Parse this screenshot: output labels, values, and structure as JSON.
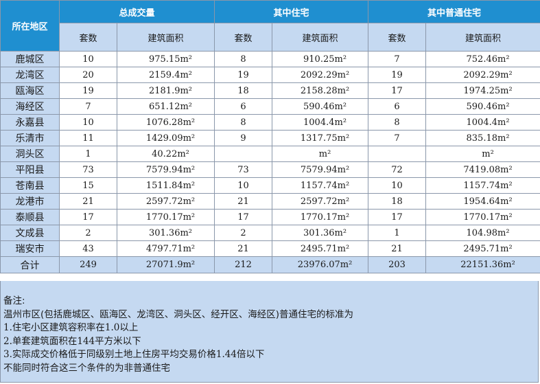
{
  "headers": {
    "region": "所在地区",
    "total": "总成交量",
    "residential": "其中住宅",
    "ordinary": "其中普通住宅",
    "sets": "套数",
    "area": "建筑面积"
  },
  "unit": "m²",
  "rows": [
    {
      "region": "鹿城区",
      "t_sets": "10",
      "t_area": "975.15",
      "r_sets": "8",
      "r_area": "910.25",
      "o_sets": "7",
      "o_area": "752.46"
    },
    {
      "region": "龙湾区",
      "t_sets": "20",
      "t_area": "2159.4",
      "r_sets": "19",
      "r_area": "2092.29",
      "o_sets": "19",
      "o_area": "2092.29"
    },
    {
      "region": "瓯海区",
      "t_sets": "19",
      "t_area": "2181.9",
      "r_sets": "18",
      "r_area": "2158.28",
      "o_sets": "17",
      "o_area": "1974.25"
    },
    {
      "region": "海经区",
      "t_sets": "7",
      "t_area": "651.12",
      "r_sets": "6",
      "r_area": "590.46",
      "o_sets": "6",
      "o_area": "590.46"
    },
    {
      "region": "永嘉县",
      "t_sets": "10",
      "t_area": "1076.28",
      "r_sets": "8",
      "r_area": "1004.4",
      "o_sets": "8",
      "o_area": "1004.4"
    },
    {
      "region": "乐清市",
      "t_sets": "11",
      "t_area": "1429.09",
      "r_sets": "9",
      "r_area": "1317.75",
      "o_sets": "7",
      "o_area": "835.18"
    },
    {
      "region": "洞头区",
      "t_sets": "1",
      "t_area": "40.22",
      "r_sets": "",
      "r_area": "",
      "o_sets": "",
      "o_area": ""
    },
    {
      "region": "平阳县",
      "t_sets": "73",
      "t_area": "7579.94",
      "r_sets": "73",
      "r_area": "7579.94",
      "o_sets": "72",
      "o_area": "7419.08"
    },
    {
      "region": "苍南县",
      "t_sets": "15",
      "t_area": "1511.84",
      "r_sets": "10",
      "r_area": "1157.74",
      "o_sets": "10",
      "o_area": "1157.74"
    },
    {
      "region": "龙港市",
      "t_sets": "21",
      "t_area": "2597.72",
      "r_sets": "21",
      "r_area": "2597.72",
      "o_sets": "18",
      "o_area": "1954.64"
    },
    {
      "region": "泰顺县",
      "t_sets": "17",
      "t_area": "1770.17",
      "r_sets": "17",
      "r_area": "1770.17",
      "o_sets": "17",
      "o_area": "1770.17"
    },
    {
      "region": "文成县",
      "t_sets": "2",
      "t_area": "301.36",
      "r_sets": "2",
      "r_area": "301.36",
      "o_sets": "1",
      "o_area": "104.98"
    },
    {
      "region": "瑞安市",
      "t_sets": "43",
      "t_area": "4797.71",
      "r_sets": "21",
      "r_area": "2495.71",
      "o_sets": "21",
      "o_area": "2495.71"
    }
  ],
  "total": {
    "region": "合计",
    "t_sets": "249",
    "t_area": "27071.9",
    "r_sets": "212",
    "r_area": "23976.07",
    "o_sets": "203",
    "o_area": "22151.36"
  },
  "notes": {
    "heading": "备注:",
    "line1": "温州市区(包括鹿城区、瓯海区、龙湾区、洞头区、经开区、海经区)普通住宅的标准为",
    "line2": "1.住宅小区建筑容积率在1.0以上",
    "line3": "2.单套建筑面积在144平方米以下",
    "line4": "3.实际成交价格低于同级别土地上住房平均交易价格1.44倍以下",
    "line5": "不能同时符合这三个条件的为非普通住宅"
  }
}
